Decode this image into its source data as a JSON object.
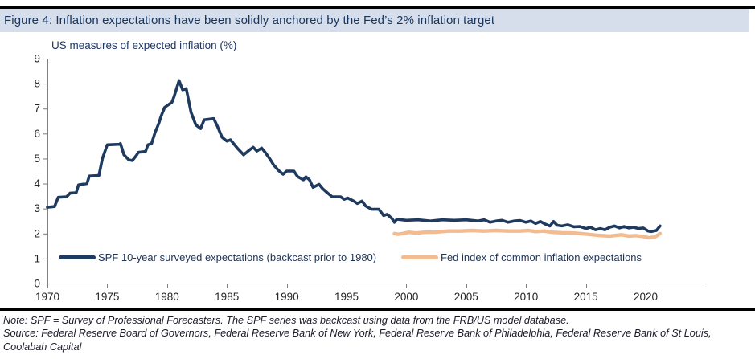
{
  "header": {
    "title": "Figure 4: Inflation expectations have been solidly anchored by the Fed’s 2% inflation target"
  },
  "chart_data": {
    "type": "line",
    "subtitle": "US measures of expected inflation (%)",
    "grid": false,
    "legend_position": "inside-bottom",
    "x_axis": {
      "min": 1970,
      "max": 2024.9,
      "ticks": [
        1970,
        1975,
        1980,
        1985,
        1990,
        1995,
        2000,
        2005,
        2010,
        2015,
        2020
      ]
    },
    "y_axis": {
      "min": 0,
      "max": 9,
      "ticks": [
        0,
        1,
        2,
        3,
        4,
        5,
        6,
        7,
        8,
        9
      ]
    },
    "series": [
      {
        "name": "SPF 10-year surveyed expectations (backcast prior to 1980)",
        "color": "#1f3a5f",
        "points": [
          [
            1970.0,
            3.05
          ],
          [
            1970.6,
            3.08
          ],
          [
            1970.9,
            3.45
          ],
          [
            1971.6,
            3.47
          ],
          [
            1971.9,
            3.62
          ],
          [
            1972.4,
            3.63
          ],
          [
            1972.6,
            3.95
          ],
          [
            1973.3,
            4.0
          ],
          [
            1973.5,
            4.3
          ],
          [
            1974.3,
            4.32
          ],
          [
            1974.6,
            5.0
          ],
          [
            1975.0,
            5.55
          ],
          [
            1976.0,
            5.57
          ],
          [
            1976.1,
            5.6
          ],
          [
            1976.4,
            5.15
          ],
          [
            1976.8,
            4.95
          ],
          [
            1977.1,
            4.92
          ],
          [
            1977.4,
            5.1
          ],
          [
            1977.6,
            5.25
          ],
          [
            1978.2,
            5.28
          ],
          [
            1978.4,
            5.55
          ],
          [
            1978.7,
            5.6
          ],
          [
            1979.0,
            6.05
          ],
          [
            1979.3,
            6.4
          ],
          [
            1979.5,
            6.7
          ],
          [
            1979.8,
            7.05
          ],
          [
            1980.4,
            7.25
          ],
          [
            1980.6,
            7.5
          ],
          [
            1981.0,
            8.12
          ],
          [
            1981.3,
            7.75
          ],
          [
            1981.6,
            7.8
          ],
          [
            1982.0,
            6.85
          ],
          [
            1982.4,
            6.35
          ],
          [
            1982.8,
            6.2
          ],
          [
            1983.1,
            6.55
          ],
          [
            1983.9,
            6.6
          ],
          [
            1984.2,
            6.3
          ],
          [
            1984.6,
            5.85
          ],
          [
            1985.0,
            5.7
          ],
          [
            1985.3,
            5.75
          ],
          [
            1985.9,
            5.4
          ],
          [
            1986.4,
            5.15
          ],
          [
            1986.9,
            5.35
          ],
          [
            1987.2,
            5.45
          ],
          [
            1987.5,
            5.3
          ],
          [
            1987.9,
            5.42
          ],
          [
            1988.2,
            5.25
          ],
          [
            1988.6,
            4.98
          ],
          [
            1988.9,
            4.75
          ],
          [
            1989.3,
            4.53
          ],
          [
            1989.7,
            4.37
          ],
          [
            1990.0,
            4.5
          ],
          [
            1990.6,
            4.5
          ],
          [
            1990.9,
            4.28
          ],
          [
            1991.4,
            4.15
          ],
          [
            1991.6,
            4.27
          ],
          [
            1991.9,
            4.15
          ],
          [
            1992.2,
            3.85
          ],
          [
            1992.7,
            3.97
          ],
          [
            1993.0,
            3.8
          ],
          [
            1993.4,
            3.63
          ],
          [
            1993.8,
            3.47
          ],
          [
            1994.5,
            3.47
          ],
          [
            1994.8,
            3.37
          ],
          [
            1995.1,
            3.42
          ],
          [
            1995.6,
            3.3
          ],
          [
            1995.9,
            3.2
          ],
          [
            1996.3,
            3.3
          ],
          [
            1996.6,
            3.1
          ],
          [
            1997.1,
            2.97
          ],
          [
            1997.7,
            2.97
          ],
          [
            1998.1,
            2.72
          ],
          [
            1998.4,
            2.77
          ],
          [
            1998.8,
            2.6
          ],
          [
            1999.0,
            2.45
          ],
          [
            1999.2,
            2.57
          ],
          [
            2000.0,
            2.53
          ],
          [
            2001.0,
            2.55
          ],
          [
            2002.0,
            2.5
          ],
          [
            2003.0,
            2.55
          ],
          [
            2004.0,
            2.53
          ],
          [
            2005.0,
            2.55
          ],
          [
            2006.0,
            2.5
          ],
          [
            2006.5,
            2.55
          ],
          [
            2007.0,
            2.45
          ],
          [
            2007.5,
            2.5
          ],
          [
            2008.0,
            2.53
          ],
          [
            2008.5,
            2.45
          ],
          [
            2009.0,
            2.5
          ],
          [
            2009.5,
            2.52
          ],
          [
            2010.0,
            2.45
          ],
          [
            2010.4,
            2.5
          ],
          [
            2010.8,
            2.4
          ],
          [
            2011.2,
            2.48
          ],
          [
            2011.6,
            2.38
          ],
          [
            2012.0,
            2.3
          ],
          [
            2012.3,
            2.48
          ],
          [
            2012.6,
            2.33
          ],
          [
            2013.0,
            2.3
          ],
          [
            2013.5,
            2.35
          ],
          [
            2014.0,
            2.27
          ],
          [
            2014.5,
            2.28
          ],
          [
            2015.0,
            2.2
          ],
          [
            2015.4,
            2.25
          ],
          [
            2015.8,
            2.15
          ],
          [
            2016.2,
            2.2
          ],
          [
            2016.6,
            2.15
          ],
          [
            2017.0,
            2.25
          ],
          [
            2017.4,
            2.3
          ],
          [
            2017.8,
            2.22
          ],
          [
            2018.2,
            2.28
          ],
          [
            2018.6,
            2.22
          ],
          [
            2019.0,
            2.25
          ],
          [
            2019.4,
            2.2
          ],
          [
            2019.8,
            2.22
          ],
          [
            2020.2,
            2.1
          ],
          [
            2020.5,
            2.08
          ],
          [
            2020.9,
            2.12
          ],
          [
            2021.2,
            2.3
          ]
        ]
      },
      {
        "name": "Fed index of common inflation expectations",
        "color": "#f2bb90",
        "points": [
          [
            1999.0,
            2.0
          ],
          [
            1999.3,
            1.97
          ],
          [
            1999.7,
            2.0
          ],
          [
            2000.2,
            2.05
          ],
          [
            2000.8,
            2.02
          ],
          [
            2001.5,
            2.05
          ],
          [
            2002.5,
            2.06
          ],
          [
            2003.5,
            2.1
          ],
          [
            2004.5,
            2.1
          ],
          [
            2005.5,
            2.12
          ],
          [
            2006.5,
            2.1
          ],
          [
            2007.5,
            2.12
          ],
          [
            2008.5,
            2.1
          ],
          [
            2009.5,
            2.1
          ],
          [
            2010.2,
            2.12
          ],
          [
            2010.8,
            2.08
          ],
          [
            2011.5,
            2.1
          ],
          [
            2012.2,
            2.05
          ],
          [
            2013.0,
            2.03
          ],
          [
            2014.0,
            2.02
          ],
          [
            2015.0,
            1.98
          ],
          [
            2016.0,
            1.93
          ],
          [
            2017.0,
            1.9
          ],
          [
            2018.0,
            1.95
          ],
          [
            2018.6,
            1.9
          ],
          [
            2019.2,
            1.92
          ],
          [
            2019.8,
            1.88
          ],
          [
            2020.3,
            1.83
          ],
          [
            2020.8,
            1.87
          ],
          [
            2021.2,
            2.0
          ]
        ]
      }
    ]
  },
  "footer": {
    "note": "Note: SPF = Survey of Professional Forecasters. The SPF series was backcast using data from the FRB/US model database.",
    "source": "Source: Federal Reserve Board of Governors, Federal Reserve Bank of New York, Federal Reserve Bank of Philadelphia, Federal Reserve Bank of St Louis, Coolabah Capital"
  },
  "colors": {
    "spf_line": "#1f3a5f",
    "fed_line": "#f2bb90",
    "title_bar_bg": "#d6ddeb",
    "title_text": "#17365d",
    "axis": "#808080",
    "tick_label": "#262626"
  }
}
